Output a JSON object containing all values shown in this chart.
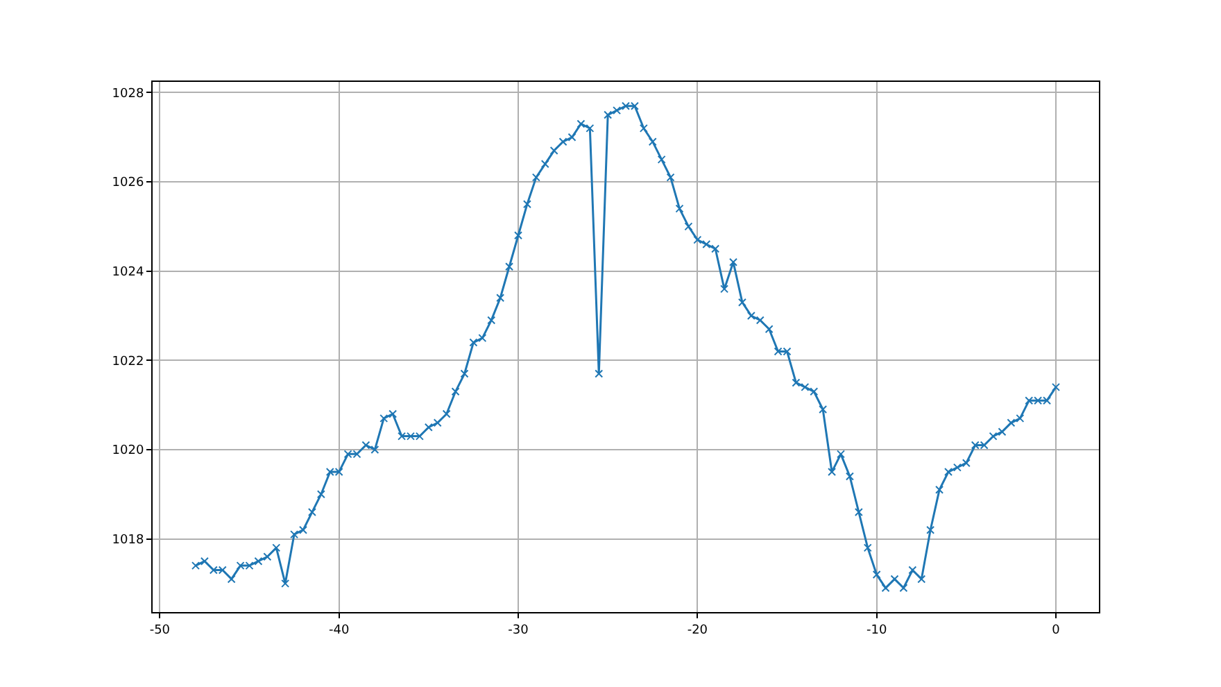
{
  "chart_data": {
    "type": "line",
    "x": [
      -48,
      -47.5,
      -47,
      -46.5,
      -46,
      -45.5,
      -45,
      -44.5,
      -44,
      -43.5,
      -43,
      -42.5,
      -42,
      -41.5,
      -41,
      -40.5,
      -40,
      -39.5,
      -39,
      -38.5,
      -38,
      -37.5,
      -37,
      -36.5,
      -36,
      -35.5,
      -35,
      -34.5,
      -34,
      -33.5,
      -33,
      -32.5,
      -32,
      -31.5,
      -31,
      -30.5,
      -30,
      -29.5,
      -29,
      -28.5,
      -28,
      -27.5,
      -27,
      -26.5,
      -26,
      -25.5,
      -25,
      -24.5,
      -24,
      -23.5,
      -23,
      -22.5,
      -22,
      -21.5,
      -21,
      -20.5,
      -20,
      -19.5,
      -19,
      -18.5,
      -18,
      -17.5,
      -17,
      -16.5,
      -16,
      -15.5,
      -15,
      -14.5,
      -14,
      -13.5,
      -13,
      -12.5,
      -12,
      -11.5,
      -11,
      -10.5,
      -10,
      -9.5,
      -9,
      -8.5,
      -8,
      -7.5,
      -7,
      -6.5,
      -6,
      -5.5,
      -5,
      -4.5,
      -4,
      -3.5,
      -3,
      -2.5,
      -2,
      -1.5,
      -1,
      -0.5,
      0
    ],
    "series": [
      {
        "color": "#1f77b4",
        "values": [
          1017.4,
          1017.5,
          1017.3,
          1017.3,
          1017.1,
          1017.4,
          1017.4,
          1017.5,
          1017.6,
          1017.8,
          1017.0,
          1018.1,
          1018.2,
          1018.6,
          1019.0,
          1019.5,
          1019.5,
          1019.9,
          1019.9,
          1020.1,
          1020.0,
          1020.7,
          1020.8,
          1020.3,
          1020.3,
          1020.3,
          1020.5,
          1020.6,
          1020.8,
          1021.3,
          1021.7,
          1022.4,
          1022.5,
          1022.9,
          1023.4,
          1024.1,
          1024.8,
          1025.5,
          1026.1,
          1026.4,
          1026.7,
          1026.9,
          1027.0,
          1027.3,
          1027.2,
          1021.7,
          1027.5,
          1027.6,
          1027.7,
          1027.7,
          1027.2,
          1026.9,
          1026.5,
          1026.1,
          1025.4,
          1025.0,
          1024.7,
          1024.6,
          1024.5,
          1023.6,
          1024.2,
          1023.3,
          1023.0,
          1022.9,
          1022.7,
          1022.2,
          1022.2,
          1021.5,
          1021.4,
          1021.3,
          1020.9,
          1019.5,
          1019.9,
          1019.4,
          1018.6,
          1017.8,
          1017.2,
          1016.9,
          1017.1,
          1016.9,
          1017.3,
          1017.1,
          1018.2,
          1019.1,
          1019.5,
          1019.6,
          1019.7,
          1020.1,
          1020.1,
          1020.3,
          1020.4,
          1020.6,
          1020.7,
          1021.1,
          1021.1,
          1021.1,
          1021.4
        ]
      }
    ],
    "xlim": [
      -50.4,
      2.4
    ],
    "xticks": [
      -50,
      -40,
      -30,
      -20,
      -10,
      0
    ],
    "ylim": [
      1016.36,
      1028.24
    ],
    "yticks": [
      1018,
      1020,
      1022,
      1024,
      1026,
      1028
    ],
    "grid": true,
    "marker": "cross",
    "line_style": "solid"
  }
}
